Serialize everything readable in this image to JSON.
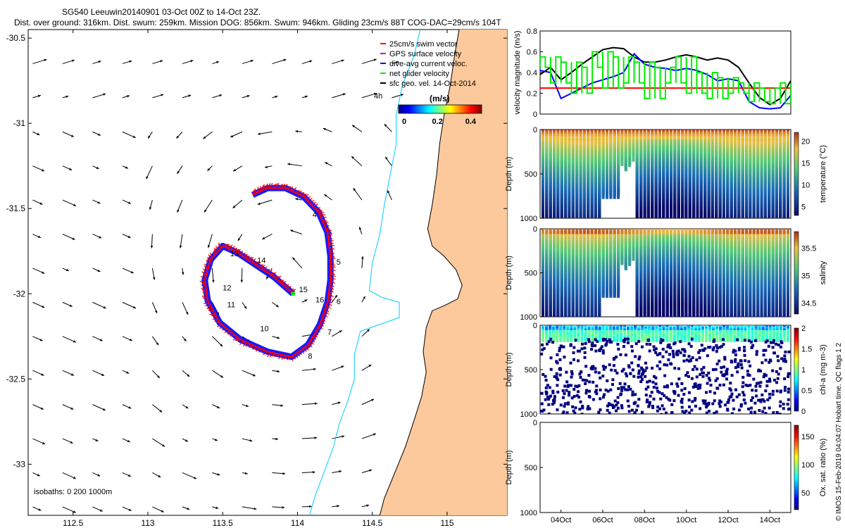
{
  "header": {
    "title": "SG540 Leeuwin20140901 03-Oct 00Z to 14-Oct 23Z.",
    "subtitle": "Dist. over ground: 316km. Dist. swum: 259km. Mission DOG: 856km. Swum: 946km. Gliding 23cm/s 88T COG-DAC=29cm/s 104T"
  },
  "side_label": "© IMOS 15-Feb-2019 04:04:07 Hobart time. QC flags 1 2",
  "colors": {
    "swim": "#ff0000",
    "gps": "#cc00cc",
    "dac": "#0000ff",
    "net": "#00ee00",
    "geo": "#000000",
    "coast": "#000000",
    "isobath": "#00ccff",
    "land": "#fbc99b"
  },
  "chart_data": [
    {
      "type": "map",
      "name": "track",
      "xlim": [
        112.2,
        115.4
      ],
      "ylim": [
        -33.3,
        -30.45
      ],
      "xticks": [
        112.5,
        113,
        113.5,
        114,
        114.5,
        115
      ],
      "yticks": [
        -30.5,
        -31,
        -31.5,
        -32,
        -32.5,
        -33
      ],
      "xtick_labels": [
        "112.5",
        "113",
        "113.5",
        "114",
        "114.5",
        "115"
      ],
      "ytick_labels": [
        "-30.5",
        "-31",
        "-31.5",
        "-32",
        "-32.5",
        "-33"
      ],
      "legend": [
        {
          "label": "25cm/s swim vector",
          "color": "#ff0000"
        },
        {
          "label": "GPS surface velocity",
          "color": "#cc00cc"
        },
        {
          "label": "dive-avg current veloc.",
          "color": "#0000ff"
        },
        {
          "label": "net glider velocity",
          "color": "#00ee00"
        },
        {
          "label": "sfc geo. vel. 14-Oct-2014",
          "color": "#000000"
        }
      ],
      "annotations": [
        "4h",
        "(m/s)"
      ],
      "colorbar": {
        "label": "(m/s)",
        "ticks": [
          "0",
          "0.2",
          "0.4"
        ],
        "range": [
          0,
          0.5
        ]
      },
      "isobaths_label": "isobaths: 0   200  1000m",
      "track": [
        [
          113.7,
          -31.42
        ],
        [
          113.8,
          -31.38
        ],
        [
          113.92,
          -31.38
        ],
        [
          114.04,
          -31.43
        ],
        [
          114.14,
          -31.52
        ],
        [
          114.2,
          -31.64
        ],
        [
          114.22,
          -31.78
        ],
        [
          114.22,
          -31.92
        ],
        [
          114.2,
          -32.05
        ],
        [
          114.15,
          -32.18
        ],
        [
          114.07,
          -32.3
        ],
        [
          113.96,
          -32.37
        ],
        [
          113.8,
          -32.34
        ],
        [
          113.62,
          -32.27
        ],
        [
          113.48,
          -32.17
        ],
        [
          113.4,
          -32.04
        ],
        [
          113.38,
          -31.92
        ],
        [
          113.42,
          -31.8
        ],
        [
          113.5,
          -31.72
        ],
        [
          113.6,
          -31.76
        ],
        [
          113.72,
          -31.83
        ],
        [
          113.84,
          -31.9
        ],
        [
          113.97,
          -32.0
        ]
      ],
      "day_labels": [
        {
          "label": "4",
          "x": 114.1,
          "y": -31.55
        },
        {
          "label": "5",
          "x": 114.26,
          "y": -31.83
        },
        {
          "label": "6",
          "x": 114.26,
          "y": -32.06
        },
        {
          "label": "7",
          "x": 114.2,
          "y": -32.24
        },
        {
          "label": "8",
          "x": 114.07,
          "y": -32.38
        },
        {
          "label": "10",
          "x": 113.75,
          "y": -32.22
        },
        {
          "label": "11",
          "x": 113.53,
          "y": -32.08
        },
        {
          "label": "12",
          "x": 113.5,
          "y": -31.98
        },
        {
          "label": "13",
          "x": 113.55,
          "y": -31.78
        },
        {
          "label": "14",
          "x": 113.73,
          "y": -31.82
        },
        {
          "label": "15",
          "x": 114.01,
          "y": -31.99
        },
        {
          "label": "16",
          "x": 114.12,
          "y": -32.05
        }
      ],
      "coast": [
        [
          115.08,
          -30.45
        ],
        [
          115.05,
          -30.6
        ],
        [
          115.02,
          -30.78
        ],
        [
          114.98,
          -30.95
        ],
        [
          114.95,
          -31.12
        ],
        [
          114.93,
          -31.3
        ],
        [
          114.9,
          -31.48
        ],
        [
          114.87,
          -31.62
        ],
        [
          114.9,
          -31.72
        ],
        [
          114.98,
          -31.78
        ],
        [
          115.06,
          -31.86
        ],
        [
          115.1,
          -31.95
        ],
        [
          115.07,
          -32.03
        ],
        [
          114.98,
          -32.07
        ],
        [
          114.9,
          -32.1
        ],
        [
          114.86,
          -32.2
        ],
        [
          114.84,
          -32.34
        ],
        [
          114.86,
          -32.46
        ],
        [
          114.83,
          -32.6
        ],
        [
          114.78,
          -32.74
        ],
        [
          114.72,
          -32.9
        ],
        [
          114.65,
          -33.05
        ],
        [
          114.58,
          -33.2
        ],
        [
          114.55,
          -33.3
        ]
      ],
      "isobath_200": [
        [
          114.82,
          -30.45
        ],
        [
          114.78,
          -30.6
        ],
        [
          114.7,
          -30.78
        ],
        [
          114.66,
          -30.95
        ],
        [
          114.66,
          -31.12
        ],
        [
          114.62,
          -31.3
        ],
        [
          114.58,
          -31.48
        ],
        [
          114.55,
          -31.65
        ],
        [
          114.5,
          -31.82
        ],
        [
          114.48,
          -31.98
        ],
        [
          114.56,
          -32.02
        ],
        [
          114.68,
          -32.05
        ],
        [
          114.68,
          -32.14
        ],
        [
          114.55,
          -32.18
        ],
        [
          114.42,
          -32.22
        ],
        [
          114.38,
          -32.36
        ],
        [
          114.38,
          -32.5
        ],
        [
          114.34,
          -32.62
        ],
        [
          114.28,
          -32.76
        ],
        [
          114.24,
          -32.9
        ],
        [
          114.18,
          -33.04
        ],
        [
          114.12,
          -33.18
        ],
        [
          114.08,
          -33.3
        ]
      ]
    },
    {
      "type": "line",
      "name": "velocity",
      "ylabel": "velocity magnitude (m/s)",
      "ylim": [
        0,
        0.8
      ],
      "yticks": [
        0,
        0.2,
        0.4,
        0.6,
        0.8
      ],
      "ytick_labels": [
        "0",
        "0.2",
        "0.4",
        "0.6",
        "0.8"
      ],
      "xlim": [
        3.0,
        15.0
      ],
      "series": [
        {
          "color": "#000000",
          "x": [
            3,
            3.5,
            4,
            4.5,
            5,
            5.5,
            6,
            6.5,
            7,
            7.5,
            8,
            8.5,
            9,
            9.5,
            10,
            10.5,
            11,
            11.5,
            12,
            12.5,
            13,
            13.5,
            14,
            14.5,
            15
          ],
          "y": [
            0.38,
            0.45,
            0.33,
            0.4,
            0.48,
            0.55,
            0.62,
            0.64,
            0.63,
            0.55,
            0.5,
            0.5,
            0.52,
            0.55,
            0.57,
            0.55,
            0.52,
            0.54,
            0.52,
            0.45,
            0.3,
            0.16,
            0.09,
            0.15,
            0.32
          ]
        },
        {
          "color": "#0000ff",
          "x": [
            3,
            3.5,
            4,
            4.5,
            5,
            5.5,
            6,
            6.5,
            7,
            7.5,
            8,
            8.5,
            9,
            9.5,
            10,
            10.5,
            11,
            11.5,
            12,
            12.5,
            13,
            13.5,
            14,
            14.5,
            15
          ],
          "y": [
            0.42,
            0.4,
            0.15,
            0.2,
            0.25,
            0.3,
            0.33,
            0.36,
            0.4,
            0.58,
            0.48,
            0.45,
            0.44,
            0.42,
            0.44,
            0.42,
            0.38,
            0.32,
            0.34,
            0.32,
            0.12,
            0.06,
            0.05,
            0.06,
            0.18
          ]
        },
        {
          "color": "#ff0000",
          "x": [
            3,
            15
          ],
          "y": [
            0.25,
            0.25
          ]
        },
        {
          "color": "#00ee00",
          "x": [
            3,
            3.5,
            4,
            4.5,
            5,
            5.5,
            6,
            6.5,
            7,
            7.5,
            8,
            8.5,
            9,
            9.5,
            10,
            10.5,
            11,
            11.5,
            12,
            12.5,
            13,
            13.5,
            14,
            14.5,
            15
          ],
          "y": [
            0.45,
            0.55,
            0.3,
            0.5,
            0.2,
            0.45,
            0.6,
            0.25,
            0.55,
            0.3,
            0.5,
            0.15,
            0.45,
            0.3,
            0.55,
            0.2,
            0.4,
            0.15,
            0.35,
            0.2,
            0.3,
            0.12,
            0.25,
            0.1,
            0.3
          ]
        }
      ]
    },
    {
      "type": "heatmap",
      "name": "temperature",
      "ylabel": "Depth (m)",
      "colorbar_label": "temperature (°C)",
      "clim": [
        3,
        22
      ],
      "cticks": [
        "20",
        "15",
        "10",
        "5"
      ],
      "cvals": [
        20,
        15,
        10,
        5
      ],
      "yticks": [
        "0",
        "500",
        "1000"
      ]
    },
    {
      "type": "heatmap",
      "name": "salinity",
      "ylabel": "Depth (m)",
      "colorbar_label": "salinity",
      "clim": [
        34.3,
        35.8
      ],
      "cticks": [
        "35.5",
        "35",
        "34.5"
      ],
      "cvals": [
        35.5,
        35,
        34.5
      ],
      "yticks": [
        "0",
        "500",
        "1000"
      ]
    },
    {
      "type": "heatmap",
      "name": "chla",
      "ylabel": "Depth (m)",
      "colorbar_label": "chl-a (mg m-3)",
      "clim": [
        0,
        2
      ],
      "cticks": [
        "2",
        "1.5",
        "1",
        "0.5",
        "0"
      ],
      "cvals": [
        2,
        1.5,
        1,
        0.5,
        0
      ],
      "yticks": [
        "0",
        "500",
        "1000"
      ]
    },
    {
      "type": "heatmap",
      "name": "oxygen",
      "ylabel": "Depth (m)",
      "colorbar_label": "Ox. sat. ratio (%)",
      "clim": [
        20,
        170
      ],
      "cticks": [
        "150",
        "100",
        "50"
      ],
      "cvals": [
        150,
        100,
        50
      ],
      "yticks": [
        "0",
        "500",
        "1000"
      ],
      "xticks": [
        4,
        6,
        8,
        10,
        12,
        14
      ],
      "xtick_labels": [
        "04Oct",
        "06Oct",
        "08Oct",
        "10Oct",
        "12Oct",
        "14Oct"
      ]
    }
  ]
}
